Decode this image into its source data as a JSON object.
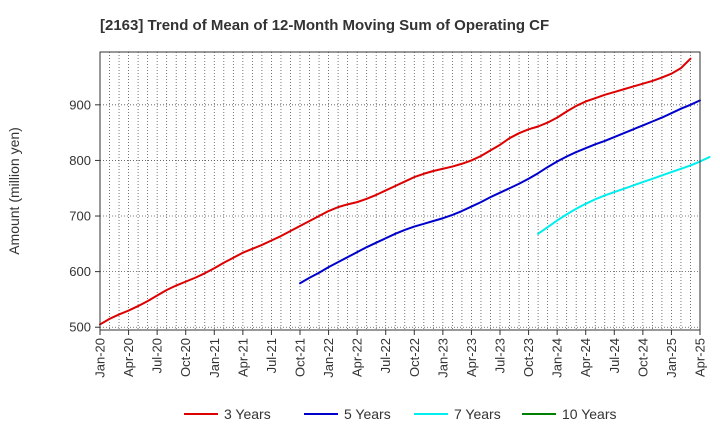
{
  "chart_data": {
    "type": "line",
    "title": "[2163]  Trend of Mean of 12-Month Moving Sum of Operating CF",
    "xlabel": "",
    "ylabel": "Amount (million yen)",
    "ylim": [
      495,
      995
    ],
    "yticks": [
      500,
      600,
      700,
      800,
      900
    ],
    "x_tick_labels": [
      "Jan-20",
      "Apr-20",
      "Jul-20",
      "Oct-20",
      "Jan-21",
      "Apr-21",
      "Jul-21",
      "Oct-21",
      "Jan-22",
      "Apr-22",
      "Jul-22",
      "Oct-22",
      "Jan-23",
      "Apr-23",
      "Jul-23",
      "Oct-23",
      "Jan-24",
      "Apr-24",
      "Jul-24",
      "Oct-24",
      "Jan-25",
      "Apr-25"
    ],
    "x_range_months": [
      0,
      63
    ],
    "grid": true,
    "legend_position": "bottom",
    "series": [
      {
        "name": "3 Years",
        "color": "#dd0000",
        "start_month": 0,
        "values": [
          505,
          515,
          523,
          530,
          538,
          547,
          557,
          567,
          575,
          582,
          589,
          597,
          606,
          616,
          625,
          634,
          641,
          648,
          656,
          664,
          673,
          682,
          691,
          700,
          709,
          716,
          721,
          725,
          731,
          738,
          746,
          754,
          762,
          770,
          776,
          781,
          785,
          789,
          794,
          800,
          808,
          818,
          828,
          840,
          849,
          856,
          861,
          868,
          877,
          888,
          898,
          906,
          912,
          918,
          923,
          928,
          933,
          938,
          943,
          949,
          956,
          966,
          983
        ]
      },
      {
        "name": "5 Years",
        "color": "#0000cc",
        "start_month": 21,
        "values": [
          579,
          589,
          598,
          608,
          617,
          626,
          635,
          644,
          652,
          660,
          668,
          675,
          681,
          686,
          691,
          696,
          702,
          709,
          717,
          725,
          734,
          742,
          750,
          758,
          767,
          777,
          788,
          798,
          807,
          815,
          822,
          829,
          835,
          842,
          849,
          856,
          863,
          870,
          877,
          885,
          893,
          900,
          908
        ]
      },
      {
        "name": "7 Years",
        "color": "#00eeee",
        "start_month": 46,
        "values": [
          668,
          680,
          692,
          703,
          713,
          722,
          730,
          737,
          743,
          749,
          755,
          761,
          767,
          773,
          779,
          785,
          791,
          798,
          806
        ]
      },
      {
        "name": "10 Years",
        "color": "#008000",
        "start_month": 0,
        "values": []
      }
    ]
  }
}
